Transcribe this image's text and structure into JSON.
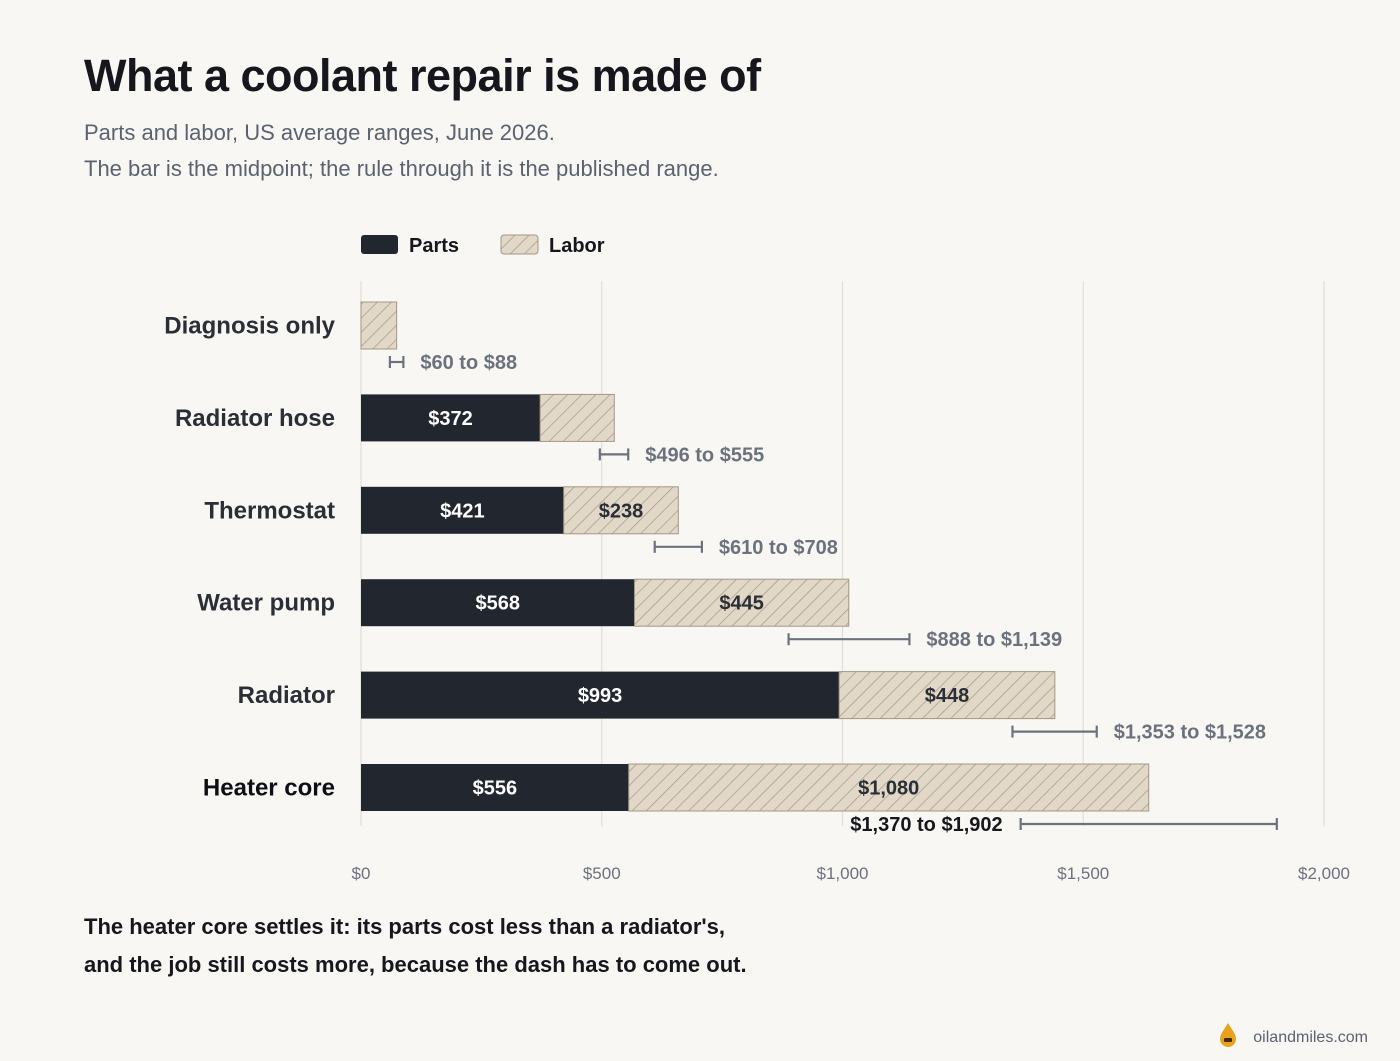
{
  "title": "What a coolant repair is made of",
  "subtitle": [
    "Parts and labor, US average ranges, June 2026.",
    "The bar is the midpoint; the rule through it is the published range."
  ],
  "takeaway": [
    "The heater core settles it: its parts cost less than a radiator's,",
    "and the job still costs more, because the dash has to come out."
  ],
  "footer": {
    "site": "oilandmiles.com",
    "logo_icon": "oil-drop-icon"
  },
  "colors": {
    "parts": "#22262f",
    "labor_fill": "#e2d8c8",
    "labor_stroke": "#a39784",
    "range": "#6b727e",
    "grid": "#e2ded7",
    "muted": "#6b727e"
  },
  "chart_data": {
    "type": "bar",
    "orientation": "horizontal",
    "stacked": true,
    "categories": [
      "Diagnosis only",
      "Radiator hose",
      "Thermostat",
      "Water pump",
      "Radiator",
      "Heater core"
    ],
    "series": [
      {
        "name": "Parts",
        "values": [
          0,
          372,
          421,
          568,
          993,
          556
        ],
        "labels": [
          "",
          "$372",
          "$421",
          "$568",
          "$993",
          "$556"
        ]
      },
      {
        "name": "Labor",
        "values": [
          74,
          154,
          238,
          445,
          448,
          1080
        ],
        "labels": [
          "",
          "",
          "$238",
          "$445",
          "$448",
          "$1,080"
        ]
      }
    ],
    "ranges": [
      {
        "low": 60,
        "high": 88,
        "label": "$60 to $88"
      },
      {
        "low": 496,
        "high": 555,
        "label": "$496 to $555"
      },
      {
        "low": 610,
        "high": 708,
        "label": "$610 to $708"
      },
      {
        "low": 888,
        "high": 1139,
        "label": "$888 to $1,139"
      },
      {
        "low": 1353,
        "high": 1528,
        "label": "$1,353 to $1,528"
      },
      {
        "low": 1370,
        "high": 1902,
        "label": "$1,370 to $1,902"
      }
    ],
    "highlight_category": "Heater core",
    "xlim": [
      0,
      2000
    ],
    "xticks": [
      0,
      500,
      1000,
      1500,
      2000
    ],
    "xtick_labels": [
      "$0",
      "$500",
      "$1,000",
      "$1,500",
      "$2,000"
    ],
    "grid": true,
    "legend_position": "top-left"
  }
}
